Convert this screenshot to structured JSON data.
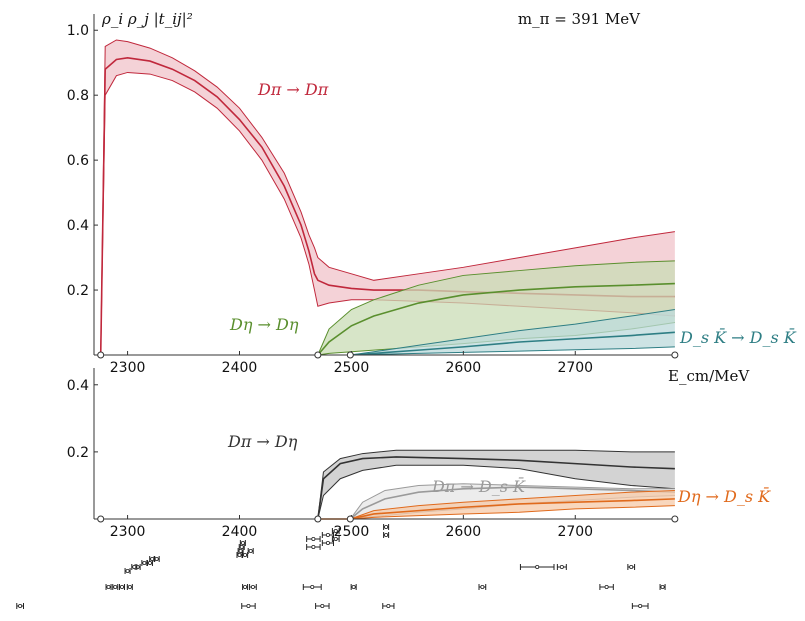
{
  "chart_data": [
    {
      "type": "area",
      "panel": "top",
      "annotation": "m_π = 391 MeV",
      "xlabel": "E_cm/MeV",
      "ylabel": "ρ_i ρ_j |t_ij|²",
      "xlim": [
        2270,
        2790
      ],
      "ylim": [
        0,
        1.05
      ],
      "xticks": [
        2300,
        2400,
        2500,
        2600,
        2700
      ],
      "yticks": [
        0.2,
        0.4,
        0.6,
        0.8,
        1.0
      ],
      "ytick_labels": [
        "0.2",
        "0.4",
        "0.6",
        "0.8",
        "1.0"
      ],
      "thresholds": [
        2276,
        2470,
        2499,
        2789
      ],
      "series": [
        {
          "name": "Dπ → Dπ",
          "color": "#c0283c",
          "fill": "#f0c3ca",
          "x": [
            2276,
            2280,
            2290,
            2300,
            2320,
            2340,
            2360,
            2380,
            2400,
            2420,
            2440,
            2455,
            2462,
            2467,
            2470,
            2480,
            2500,
            2520,
            2560,
            2600,
            2650,
            2700,
            2750,
            2789
          ],
          "lower": [
            0,
            0.8,
            0.86,
            0.87,
            0.865,
            0.845,
            0.81,
            0.76,
            0.69,
            0.6,
            0.48,
            0.36,
            0.28,
            0.2,
            0.15,
            0.16,
            0.17,
            0.17,
            0.165,
            0.16,
            0.15,
            0.14,
            0.13,
            0.12
          ],
          "central": [
            0,
            0.88,
            0.91,
            0.915,
            0.905,
            0.88,
            0.845,
            0.795,
            0.725,
            0.64,
            0.52,
            0.4,
            0.32,
            0.25,
            0.23,
            0.215,
            0.205,
            0.2,
            0.2,
            0.195,
            0.19,
            0.185,
            0.18,
            0.18
          ],
          "upper": [
            0,
            0.95,
            0.97,
            0.965,
            0.945,
            0.915,
            0.875,
            0.825,
            0.76,
            0.67,
            0.56,
            0.44,
            0.37,
            0.33,
            0.3,
            0.27,
            0.25,
            0.23,
            0.25,
            0.27,
            0.3,
            0.33,
            0.36,
            0.38
          ]
        },
        {
          "name": "Dη → Dη",
          "color": "#5a8f2e",
          "fill": "#c9dcb5",
          "x": [
            2470,
            2480,
            2500,
            2520,
            2560,
            2600,
            2650,
            2700,
            2750,
            2789
          ],
          "lower": [
            0,
            0.005,
            0.01,
            0.015,
            0.025,
            0.035,
            0.05,
            0.06,
            0.08,
            0.1
          ],
          "central": [
            0,
            0.04,
            0.09,
            0.12,
            0.16,
            0.185,
            0.2,
            0.21,
            0.215,
            0.22
          ],
          "upper": [
            0,
            0.08,
            0.14,
            0.17,
            0.215,
            0.245,
            0.26,
            0.275,
            0.285,
            0.29
          ]
        },
        {
          "name": "D_s K̄ → D_s K̄",
          "color": "#2e7e84",
          "fill": "#bcdadb",
          "x": [
            2499,
            2520,
            2560,
            2600,
            2650,
            2700,
            2750,
            2789
          ],
          "lower": [
            0,
            0.002,
            0.005,
            0.008,
            0.012,
            0.016,
            0.02,
            0.025
          ],
          "central": [
            0,
            0.005,
            0.015,
            0.025,
            0.04,
            0.05,
            0.06,
            0.07
          ],
          "upper": [
            0,
            0.01,
            0.03,
            0.05,
            0.075,
            0.095,
            0.12,
            0.14
          ]
        }
      ]
    },
    {
      "type": "area",
      "panel": "bottom",
      "xlabel": "E_cm/MeV",
      "xlim": [
        2270,
        2790
      ],
      "ylim": [
        0,
        0.45
      ],
      "xticks": [
        2300,
        2400,
        2500,
        2600,
        2700
      ],
      "yticks": [
        0.2,
        0.4
      ],
      "ytick_labels": [
        "0.2",
        "0.4"
      ],
      "thresholds": [
        2276,
        2470,
        2499,
        2789
      ],
      "series": [
        {
          "name": "Dπ → Dη",
          "color": "#333333",
          "fill": "#c4c4c4",
          "x": [
            2470,
            2475,
            2490,
            2510,
            2540,
            2600,
            2650,
            2700,
            2750,
            2789
          ],
          "lower": [
            0,
            0.07,
            0.12,
            0.145,
            0.16,
            0.16,
            0.15,
            0.12,
            0.1,
            0.09
          ],
          "central": [
            0,
            0.12,
            0.165,
            0.18,
            0.185,
            0.18,
            0.175,
            0.165,
            0.155,
            0.15
          ],
          "upper": [
            0,
            0.14,
            0.18,
            0.195,
            0.205,
            0.205,
            0.205,
            0.205,
            0.2,
            0.2
          ]
        },
        {
          "name": "Dπ → D_s K̄",
          "color": "#9a9a9a",
          "fill": "#e5e5e5",
          "x": [
            2499,
            2510,
            2530,
            2560,
            2600,
            2650,
            2700,
            2750,
            2789
          ],
          "lower": [
            0,
            0.005,
            0.01,
            0.02,
            0.03,
            0.045,
            0.055,
            0.065,
            0.07
          ],
          "central": [
            0,
            0.03,
            0.06,
            0.08,
            0.09,
            0.095,
            0.09,
            0.085,
            0.08
          ],
          "upper": [
            0,
            0.05,
            0.085,
            0.1,
            0.105,
            0.1,
            0.095,
            0.09,
            0.09
          ]
        },
        {
          "name": "Dη → D_s K̄",
          "color": "#e06a1c",
          "fill": "#f5c9a8",
          "x": [
            2470,
            2499,
            2520,
            2560,
            2600,
            2650,
            2700,
            2750,
            2789
          ],
          "lower": [
            0,
            0,
            0.005,
            0.01,
            0.015,
            0.02,
            0.03,
            0.035,
            0.04
          ],
          "central": [
            0,
            0,
            0.015,
            0.025,
            0.035,
            0.045,
            0.05,
            0.055,
            0.06
          ],
          "upper": [
            0,
            0,
            0.025,
            0.04,
            0.05,
            0.06,
            0.07,
            0.08,
            0.085
          ]
        }
      ]
    }
  ],
  "spectrum": {
    "xlim": [
      2270,
      2790
    ],
    "rows": [
      {
        "levels": [
          [
            2309,
            2
          ],
          [
            2320,
            2
          ],
          [
            2326,
            2
          ],
          [
            2400,
            2
          ],
          [
            2401,
            2
          ],
          [
            2402,
            2
          ],
          [
            2403,
            2
          ],
          [
            2466,
            6
          ],
          [
            2479,
            5
          ],
          [
            2486,
            3
          ],
          [
            2531,
            2
          ],
          [
            2666,
            15
          ],
          [
            2688,
            4
          ],
          [
            2750,
            3
          ]
        ]
      },
      {
        "levels": [
          [
            2300,
            2
          ],
          [
            2306,
            2
          ],
          [
            2315,
            2
          ],
          [
            2322,
            2
          ],
          [
            2405,
            2
          ],
          [
            2410,
            2
          ],
          [
            2466,
            6
          ],
          [
            2479,
            5
          ],
          [
            2486,
            3
          ],
          [
            2531,
            2
          ]
        ]
      },
      {
        "levels": [
          [
            2283,
            2
          ],
          [
            2289,
            2
          ],
          [
            2295,
            2
          ],
          [
            2302,
            2
          ],
          [
            2405,
            2
          ],
          [
            2412,
            3
          ],
          [
            2465,
            8
          ],
          [
            2502,
            2
          ],
          [
            2617,
            3
          ],
          [
            2728,
            6
          ],
          [
            2778,
            2
          ]
        ]
      },
      {
        "levels": [
          [
            2204,
            3
          ],
          [
            2408,
            6
          ],
          [
            2474,
            6
          ],
          [
            2533,
            5
          ],
          [
            2758,
            7
          ]
        ]
      }
    ]
  }
}
